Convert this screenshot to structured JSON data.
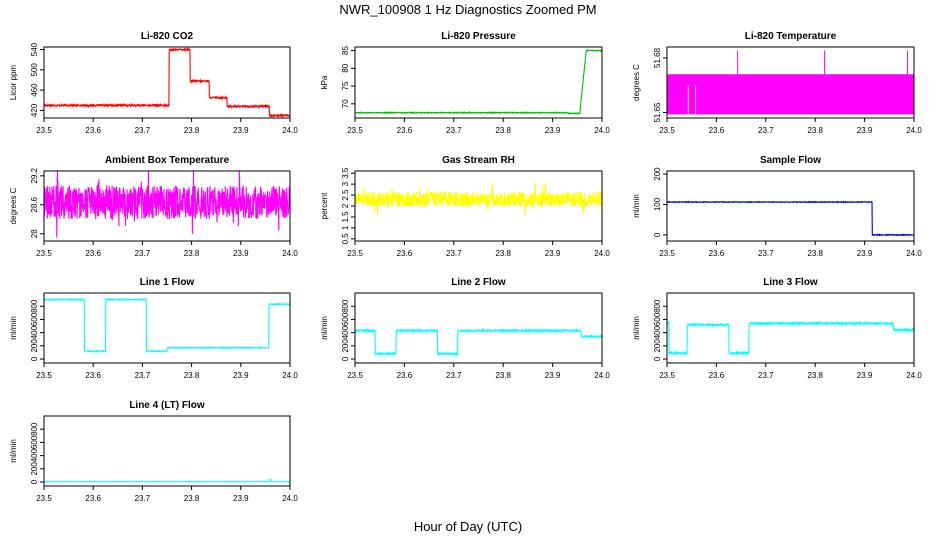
{
  "figure": {
    "title": "NWR_100908  1 Hz Diagnostics Zoomed PM",
    "xlabel": "Hour of Day (UTC)"
  },
  "chart_data": [
    {
      "id": "co2",
      "type": "line",
      "title": "Li-820 CO2",
      "ylabel": "Licor ppm",
      "color": "#ff0000",
      "xlim": [
        23.5,
        24.0
      ],
      "ylim": [
        405,
        545
      ],
      "yticks": [
        420,
        460,
        500,
        540
      ],
      "xticks": [
        "23.5",
        "23.6",
        "23.7",
        "23.8",
        "23.9",
        "24.0"
      ],
      "segments": [
        [
          23.5,
          23.754,
          430
        ],
        [
          23.754,
          23.797,
          540
        ],
        [
          23.797,
          23.836,
          478
        ],
        [
          23.836,
          23.872,
          445
        ],
        [
          23.872,
          23.958,
          428
        ],
        [
          23.958,
          24.0,
          410
        ]
      ],
      "noise": 1.5
    },
    {
      "id": "pressure",
      "type": "line",
      "title": "Li-820 Pressure",
      "ylabel": "kPa",
      "color": "#00c000",
      "xlim": [
        23.5,
        24.0
      ],
      "ylim": [
        66,
        86
      ],
      "yticks": [
        70,
        75,
        80,
        85
      ],
      "xticks": [
        "23.5",
        "23.6",
        "23.7",
        "23.8",
        "23.9",
        "24.0"
      ],
      "segments": [
        [
          23.5,
          23.93,
          67.5
        ],
        [
          23.93,
          23.955,
          67.3
        ],
        [
          23.96,
          24.0,
          85
        ]
      ],
      "ramp": [
        23.955,
        67.3,
        23.968,
        85
      ],
      "noise": 0.1
    },
    {
      "id": "licor_temp",
      "type": "line",
      "title": "Li-820 Temperature",
      "ylabel": "degrees C",
      "color": "#ff00ff",
      "xlim": [
        23.5,
        24.0
      ],
      "ylim": [
        51.647,
        51.686
      ],
      "yticks": [
        51.65,
        51.68
      ],
      "xticks": [
        "23.5",
        "23.6",
        "23.7",
        "23.8",
        "23.9",
        "24.0"
      ],
      "levels": [
        51.649,
        51.671
      ],
      "spikes": [
        23.643,
        23.819,
        23.987
      ],
      "dips": [
        23.543,
        23.558
      ]
    },
    {
      "id": "box_temp",
      "type": "line",
      "title": "Ambient Box Temperature",
      "ylabel": "degrees C",
      "color": "#ff00ff",
      "xlim": [
        23.5,
        24.0
      ],
      "ylim": [
        27.85,
        29.3
      ],
      "yticks": [
        28.0,
        28.6,
        29.2
      ],
      "xticks": [
        "23.5",
        "23.6",
        "23.7",
        "23.8",
        "23.9",
        "24.0"
      ],
      "base": 28.65,
      "noise": 0.35
    },
    {
      "id": "rh",
      "type": "line",
      "title": "Gas Stream RH",
      "ylabel": "percent",
      "color": "#ffff00",
      "xlim": [
        23.5,
        24.0
      ],
      "ylim": [
        0.4,
        3.6
      ],
      "yticks": [
        0.5,
        1.0,
        1.5,
        2.0,
        2.5,
        3.0,
        3.5
      ],
      "xticks": [
        "23.5",
        "23.6",
        "23.7",
        "23.8",
        "23.9",
        "24.0"
      ],
      "base": 2.3,
      "noise": 0.35
    },
    {
      "id": "sample_flow",
      "type": "line",
      "title": "Sample Flow",
      "ylabel": "ml/min",
      "color": "#0000cc",
      "xlim": [
        23.5,
        24.0
      ],
      "ylim": [
        -20,
        210
      ],
      "yticks": [
        0,
        100,
        200
      ],
      "xticks": [
        "23.5",
        "23.6",
        "23.7",
        "23.8",
        "23.9",
        "24.0"
      ],
      "segments": [
        [
          23.5,
          23.915,
          108
        ],
        [
          23.915,
          24.0,
          0
        ]
      ],
      "noise": 1
    },
    {
      "id": "line1",
      "type": "line",
      "title": "Line 1 Flow",
      "ylabel": "ml/min",
      "color": "#00ffff",
      "xlim": [
        23.5,
        24.0
      ],
      "ylim": [
        -60,
        1000
      ],
      "yticks": [
        0,
        200,
        400,
        600,
        800
      ],
      "xticks": [
        "23.5",
        "23.6",
        "23.7",
        "23.8",
        "23.9",
        "24.0"
      ],
      "segments": [
        [
          23.5,
          23.582,
          900
        ],
        [
          23.582,
          23.625,
          120
        ],
        [
          23.625,
          23.708,
          900
        ],
        [
          23.708,
          23.75,
          120
        ],
        [
          23.75,
          23.957,
          170
        ],
        [
          23.957,
          24.0,
          830
        ]
      ],
      "noise": 6
    },
    {
      "id": "line2",
      "type": "line",
      "title": "Line 2 Flow",
      "ylabel": "ml/min",
      "color": "#00ffff",
      "xlim": [
        23.5,
        24.0
      ],
      "ylim": [
        -60,
        1000
      ],
      "yticks": [
        0,
        200,
        400,
        600,
        800
      ],
      "xticks": [
        "23.5",
        "23.6",
        "23.7",
        "23.8",
        "23.9",
        "24.0"
      ],
      "segments": [
        [
          23.5,
          23.541,
          430
        ],
        [
          23.541,
          23.583,
          80
        ],
        [
          23.583,
          23.667,
          430
        ],
        [
          23.667,
          23.708,
          80
        ],
        [
          23.708,
          23.958,
          430
        ],
        [
          23.958,
          24.0,
          340
        ]
      ],
      "noise": 12
    },
    {
      "id": "line3",
      "type": "line",
      "title": "Line 3 Flow",
      "ylabel": "ml/min",
      "color": "#00ffff",
      "xlim": [
        23.5,
        24.0
      ],
      "ylim": [
        -60,
        1000
      ],
      "yticks": [
        0,
        200,
        400,
        600,
        800
      ],
      "xticks": [
        "23.5",
        "23.6",
        "23.7",
        "23.8",
        "23.9",
        "24.0"
      ],
      "segments": [
        [
          23.5,
          23.504,
          550
        ],
        [
          23.504,
          23.541,
          90
        ],
        [
          23.541,
          23.625,
          520
        ],
        [
          23.625,
          23.666,
          90
        ],
        [
          23.666,
          23.958,
          540
        ],
        [
          23.958,
          24.0,
          440
        ]
      ],
      "noise": 14
    },
    {
      "id": "line4",
      "type": "line",
      "title": "Line 4 (LT) Flow",
      "ylabel": "ml/min",
      "color": "#00ffff",
      "xlim": [
        23.5,
        24.0
      ],
      "ylim": [
        -60,
        1000
      ],
      "yticks": [
        0,
        200,
        400,
        600,
        800
      ],
      "xticks": [
        "23.5",
        "23.6",
        "23.7",
        "23.8",
        "23.9",
        "24.0"
      ],
      "segments": [
        [
          23.5,
          24.0,
          5
        ]
      ],
      "bump": [
        23.96,
        30
      ],
      "noise": 1
    }
  ]
}
